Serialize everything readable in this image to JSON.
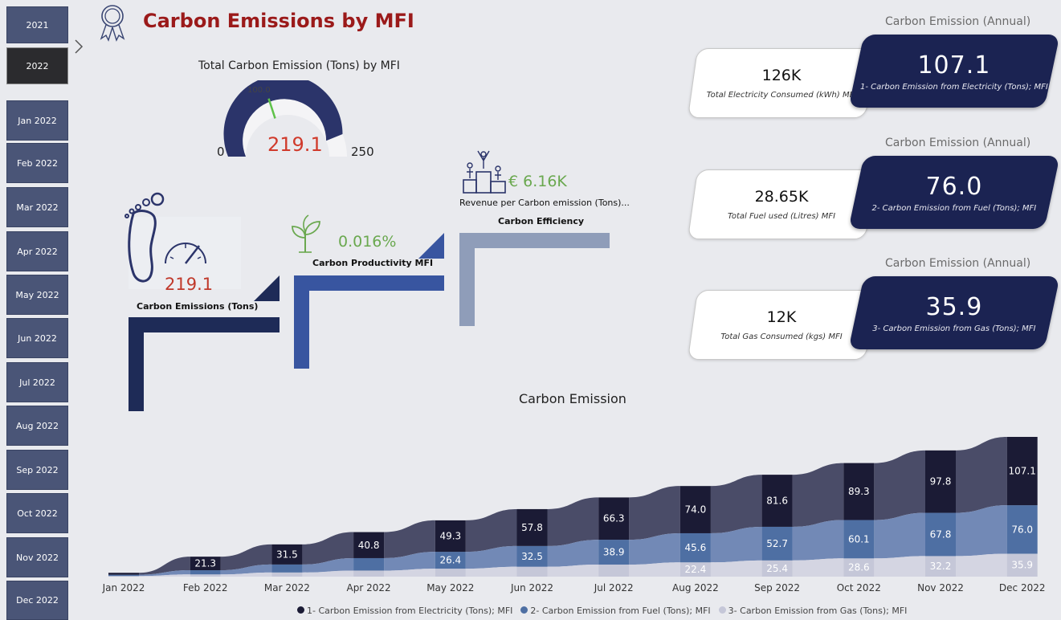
{
  "title": "Carbon Emissions by MFI",
  "slicer": {
    "years": [
      "2021",
      "2022"
    ],
    "selected_year": "2022",
    "months": [
      "Jan 2022",
      "Feb 2022",
      "Mar 2022",
      "Apr 2022",
      "May 2022",
      "Jun 2022",
      "Jul 2022",
      "Aug 2022",
      "Sep 2022",
      "Oct 2022",
      "Nov 2022",
      "Dec 2022"
    ]
  },
  "gauge": {
    "title": "Total Carbon Emission (Tons) by MFI",
    "value": "219.1",
    "value_num": 219.1,
    "min": "0",
    "max": "250",
    "max_num": 250,
    "target": "100.0",
    "target_num": 100
  },
  "kpis": {
    "emissions": {
      "value": "219.1",
      "label": "Carbon Emissions (Tons)"
    },
    "productivity": {
      "value": "0.016%",
      "label": "Carbon Productivity MFI"
    },
    "efficiency": {
      "value": "€ 6.16K",
      "sublabel": "Revenue per Carbon emission (Tons)...",
      "label": "Carbon Efficiency"
    }
  },
  "annual": [
    {
      "header": "Carbon Emission (Annual)",
      "consumed_value": "126K",
      "consumed_label": "Total Electricity Consumed (kWh) MFI",
      "emission_value": "107.1",
      "emission_label": "1- Carbon Emission from Electricity (Tons); MFI"
    },
    {
      "header": "Carbon Emission (Annual)",
      "consumed_value": "28.65K",
      "consumed_label": "Total Fuel used (Litres) MFI",
      "emission_value": "76.0",
      "emission_label": "2- Carbon Emission from Fuel (Tons); MFI"
    },
    {
      "header": "Carbon Emission (Annual)",
      "consumed_value": "12K",
      "consumed_label": "Total Gas Consumed (kgs) MFI",
      "emission_value": "35.9",
      "emission_label": "3- Carbon Emission from Gas (Tons); MFI"
    }
  ],
  "colors": {
    "electricity": "#1b1b35",
    "fuel": "#4e6fa3",
    "gas": "#c5c7d8",
    "title_red": "#9b1a1a",
    "accent_green": "#6aa84f",
    "navy": "#1b2352"
  },
  "chart_data": {
    "type": "area",
    "title": "Carbon Emission",
    "categories": [
      "Jan 2022",
      "Feb 2022",
      "Mar 2022",
      "Apr 2022",
      "May 2022",
      "Jun 2022",
      "Jul 2022",
      "Aug 2022",
      "Sep 2022",
      "Oct 2022",
      "Nov 2022",
      "Dec 2022"
    ],
    "series": [
      {
        "name": "1- Carbon Emission from Electricity (Tons); MFI",
        "values": [
          3.0,
          21.3,
          31.5,
          40.8,
          49.3,
          57.8,
          66.3,
          74.0,
          81.6,
          89.3,
          97.8,
          107.1
        ],
        "labels": [
          "",
          "21.3",
          "31.5",
          "40.8",
          "49.3",
          "57.8",
          "66.3",
          "74.0",
          "81.6",
          "89.3",
          "97.8",
          "107.1"
        ]
      },
      {
        "name": "2- Carbon Emission from Fuel (Tons); MFI",
        "values": [
          2.0,
          6.5,
          12.5,
          19.5,
          26.4,
          32.5,
          38.9,
          45.6,
          52.7,
          60.1,
          67.8,
          76.0
        ],
        "labels": [
          "",
          "",
          "",
          "",
          "26.4",
          "32.5",
          "38.9",
          "45.6",
          "52.7",
          "60.1",
          "67.8",
          "76.0"
        ]
      },
      {
        "name": "3- Carbon Emission from Gas (Tons); MFI",
        "values": [
          1.0,
          3.5,
          6.5,
          9.5,
          12.5,
          15.5,
          18.9,
          22.4,
          25.4,
          28.6,
          32.2,
          35.9
        ],
        "labels": [
          "",
          "",
          "",
          "",
          "",
          "",
          "",
          "22.4",
          "25.4",
          "28.6",
          "32.2",
          "35.9"
        ]
      }
    ],
    "chart_type": "ribbon",
    "legend_position": "bottom"
  }
}
